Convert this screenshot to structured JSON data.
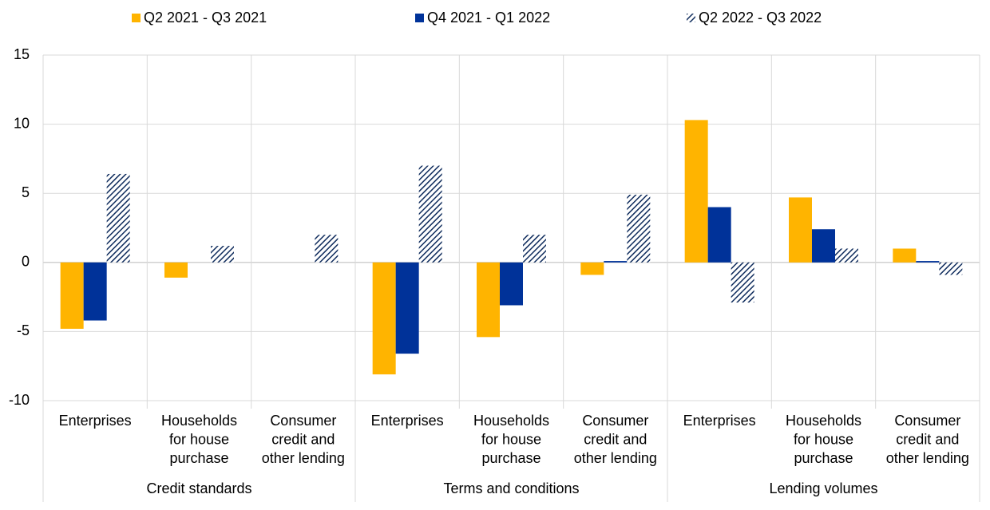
{
  "chart_data": {
    "type": "bar",
    "categories": [
      [
        "Enterprises"
      ],
      [
        "Households",
        "for house",
        "purchase"
      ],
      [
        "Consumer",
        "credit and",
        "other lending"
      ],
      [
        "Enterprises"
      ],
      [
        "Households",
        "for house",
        "purchase"
      ],
      [
        "Consumer",
        "credit and",
        "other lending"
      ],
      [
        "Enterprises"
      ],
      [
        "Households",
        "for house",
        "purchase"
      ],
      [
        "Consumer",
        "credit and",
        "other lending"
      ]
    ],
    "groups": [
      "Credit standards",
      "Terms and conditions",
      "Lending volumes"
    ],
    "series": [
      {
        "name": "Q2 2021 - Q3 2021",
        "color": "#ffb400",
        "values": [
          -4.8,
          -1.1,
          0,
          -8.1,
          -5.4,
          -0.9,
          10.3,
          4.7,
          1.0
        ]
      },
      {
        "name": "Q4 2021 - Q1 2022",
        "color": "#003299",
        "values": [
          -4.2,
          0,
          0,
          -6.6,
          -3.1,
          0.1,
          4.0,
          2.4,
          0.1
        ]
      },
      {
        "name": "Q2 2022 - Q3 2022",
        "color": "#0e2b5c",
        "hatch": true,
        "values": [
          6.4,
          1.2,
          2.0,
          7.0,
          2.0,
          4.9,
          -2.9,
          1.0,
          -0.9
        ]
      }
    ],
    "ylim": [
      -10,
      15
    ],
    "yticks": [
      -10,
      -5,
      0,
      5,
      10,
      15
    ],
    "grid": true,
    "legend": "top"
  }
}
